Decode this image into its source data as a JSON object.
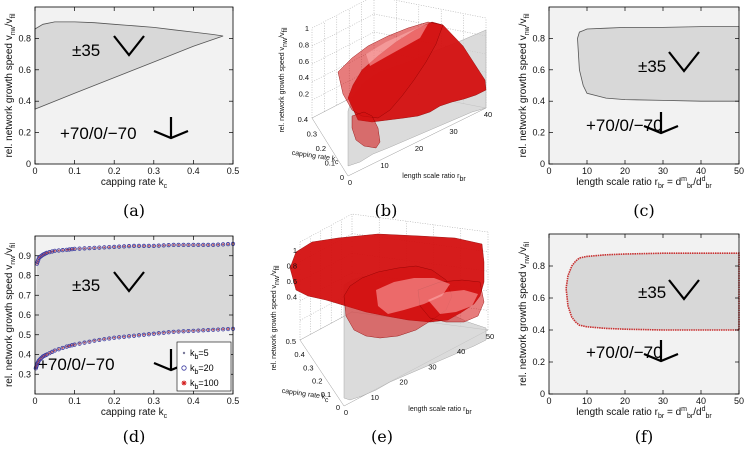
{
  "chart_data": [
    {
      "id": "a",
      "caption": "(a)",
      "type": "area",
      "xlabel": "capping rate k",
      "xlabel_sub": "c",
      "ylabel": "rel. network growth speed v",
      "ylabel_sub": "nw",
      "ylabel_mid": "/v",
      "ylabel_sub2": "fil",
      "xlim": [
        0,
        0.5
      ],
      "ylim": [
        0,
        1
      ],
      "xticks": [
        "0",
        "0.1",
        "0.2",
        "0.3",
        "0.4",
        "0.5"
      ],
      "yticks": [
        "0",
        "0.2",
        "0.4",
        "0.6",
        "0.8"
      ],
      "annotations": [
        {
          "text": "±35",
          "glyph": "v-shape",
          "region": "inside"
        },
        {
          "text": "+70/0/−70",
          "glyph": "three-pronged",
          "region": "outside"
        }
      ],
      "upper_boundary": {
        "x": [
          0,
          0.02,
          0.05,
          0.1,
          0.15,
          0.2,
          0.25,
          0.3,
          0.35,
          0.4,
          0.45,
          0.475
        ],
        "y": [
          0.86,
          0.89,
          0.905,
          0.905,
          0.9,
          0.89,
          0.88,
          0.87,
          0.855,
          0.84,
          0.825,
          0.815
        ]
      },
      "lower_boundary": {
        "x": [
          0,
          0.1,
          0.2,
          0.3,
          0.4,
          0.475
        ],
        "y": [
          0.35,
          0.45,
          0.55,
          0.65,
          0.75,
          0.815
        ]
      }
    },
    {
      "id": "b",
      "caption": "(b)",
      "type": "surface3d",
      "xlabel": "length scale ratio r",
      "xlabel_sub": "br",
      "ylabel": "capping rate k",
      "ylabel_sub": "c",
      "zlabel": "rel. network growth speed v",
      "zlabel_sub": "nw",
      "zlabel_mid": "/v",
      "zlabel_sub2": "fil",
      "xticks": [
        "0",
        "10",
        "20",
        "30",
        "40"
      ],
      "yticks": [
        "0",
        "0.1",
        "0.2",
        "0.3",
        "0.4"
      ],
      "zticks": [
        "0.2",
        "0.4",
        "0.6",
        "0.8",
        "1"
      ],
      "color": "#d41010"
    },
    {
      "id": "c",
      "caption": "(c)",
      "type": "area",
      "xlabel": "length scale ratio r",
      "xlabel_sub": "br",
      "xlabel_tail": " = d",
      "xlabel_sup1": "m",
      "xlabel_sub1": "br",
      "xlabel_tail2": "/d",
      "xlabel_sup2": "d",
      "xlabel_sub2": "br",
      "ylabel": "rel. network growth speed v",
      "ylabel_sub": "nw",
      "ylabel_mid": "/v",
      "ylabel_sub2": "fil",
      "xlim": [
        0,
        50
      ],
      "ylim": [
        0,
        1
      ],
      "xticks": [
        "0",
        "10",
        "20",
        "30",
        "40",
        "50"
      ],
      "yticks": [
        "0",
        "0.2",
        "0.4",
        "0.6",
        "0.8"
      ],
      "annotations": [
        {
          "text": "±35",
          "glyph": "v-shape",
          "region": "inside"
        },
        {
          "text": "+70/0/−70",
          "glyph": "three-pronged",
          "region": "outside"
        }
      ],
      "upper_boundary": {
        "x": [
          7.5,
          8,
          9,
          10,
          15,
          20,
          30,
          40,
          50
        ],
        "y": [
          0.8,
          0.84,
          0.85,
          0.86,
          0.865,
          0.87,
          0.87,
          0.875,
          0.875
        ]
      },
      "lower_boundary": {
        "x": [
          7.5,
          8,
          9,
          10,
          15,
          20,
          30,
          40,
          50
        ],
        "y": [
          0.8,
          0.6,
          0.5,
          0.45,
          0.42,
          0.41,
          0.405,
          0.4,
          0.4
        ]
      }
    },
    {
      "id": "d",
      "caption": "(d)",
      "type": "scatter",
      "xlabel": "capping rate k",
      "xlabel_sub": "c",
      "ylabel": "rel. network growth speed v",
      "ylabel_sub": "nw",
      "ylabel_mid": "/v",
      "ylabel_sub2": "fil",
      "xlim": [
        0,
        0.5
      ],
      "ylim": [
        0.2,
        1
      ],
      "xticks": [
        "0",
        "0.1",
        "0.2",
        "0.3",
        "0.4",
        "0.5"
      ],
      "yticks": [
        "0.3",
        "0.4",
        "0.5",
        "0.6",
        "0.7",
        "0.8",
        "0.9"
      ],
      "annotations": [
        {
          "text": "±35",
          "glyph": "v-shape",
          "region": "inside"
        },
        {
          "text": "+70/0/−70",
          "glyph": "three-pronged",
          "region": "outside"
        }
      ],
      "legend": {
        "placement": "bottom-right"
      },
      "series": [
        {
          "name": "k",
          "name_sub": "b",
          "name_tail": "=5",
          "marker": "dot",
          "color": "#7a7a9a"
        },
        {
          "name": "k",
          "name_sub": "b",
          "name_tail": "=20",
          "marker": "circle",
          "color": "#3a3aa0"
        },
        {
          "name": "k",
          "name_sub": "b",
          "name_tail": "=100",
          "marker": "star",
          "color": "#d42020"
        }
      ],
      "upper_curve": {
        "x": [
          0.005,
          0.01,
          0.02,
          0.03,
          0.05,
          0.08,
          0.1,
          0.15,
          0.2,
          0.25,
          0.3,
          0.35,
          0.4,
          0.45,
          0.5
        ],
        "y": [
          0.86,
          0.89,
          0.905,
          0.915,
          0.925,
          0.93,
          0.935,
          0.94,
          0.945,
          0.95,
          0.95,
          0.955,
          0.955,
          0.955,
          0.96
        ]
      },
      "lower_curve": {
        "x": [
          0.002,
          0.005,
          0.01,
          0.02,
          0.03,
          0.05,
          0.08,
          0.1,
          0.15,
          0.2,
          0.25,
          0.3,
          0.35,
          0.4,
          0.45,
          0.5
        ],
        "y": [
          0.33,
          0.35,
          0.37,
          0.39,
          0.4,
          0.42,
          0.44,
          0.45,
          0.47,
          0.485,
          0.495,
          0.505,
          0.515,
          0.52,
          0.525,
          0.53
        ]
      }
    },
    {
      "id": "e",
      "caption": "(e)",
      "type": "surface3d",
      "xlabel": "length scale ratio r",
      "xlabel_sub": "br",
      "ylabel": "capping rate k",
      "ylabel_sub": "c",
      "zlabel": "rel. network growth speed v",
      "zlabel_sub": "nw",
      "zlabel_mid": "/v",
      "zlabel_sub2": "fil",
      "xticks": [
        "0",
        "10",
        "20",
        "30",
        "40",
        "50"
      ],
      "yticks": [
        "0",
        "0.1",
        "0.2",
        "0.3",
        "0.4",
        "0.5"
      ],
      "zticks": [
        "0.4",
        "0.6",
        "0.8",
        "1"
      ],
      "color": "#d41010"
    },
    {
      "id": "f",
      "caption": "(f)",
      "type": "area",
      "xlabel": "length scale ratio r",
      "xlabel_sub": "br",
      "xlabel_tail": " = d",
      "xlabel_sup1": "m",
      "xlabel_sub1": "br",
      "xlabel_tail2": "/d",
      "xlabel_sup2": "d",
      "xlabel_sub2": "br",
      "ylabel": "rel. network growth speed v",
      "ylabel_sub": "nw",
      "ylabel_mid": "/v",
      "ylabel_sub2": "fil",
      "xlim": [
        0,
        50
      ],
      "ylim": [
        0,
        1
      ],
      "xticks": [
        "0",
        "10",
        "20",
        "30",
        "40",
        "50"
      ],
      "yticks": [
        "0",
        "0.2",
        "0.4",
        "0.6",
        "0.8"
      ],
      "annotations": [
        {
          "text": "±35",
          "glyph": "v-shape",
          "region": "inside"
        },
        {
          "text": "+70/0/−70",
          "glyph": "three-pronged",
          "region": "outside"
        }
      ],
      "boundary_color": "#c83030",
      "upper_boundary": {
        "x": [
          4.5,
          5,
          6,
          7,
          8,
          10,
          15,
          20,
          30,
          40,
          50
        ],
        "y": [
          0.66,
          0.74,
          0.8,
          0.83,
          0.85,
          0.86,
          0.87,
          0.875,
          0.88,
          0.88,
          0.88
        ]
      },
      "lower_boundary": {
        "x": [
          4.5,
          5,
          6,
          7,
          8,
          10,
          15,
          20,
          30,
          40,
          50
        ],
        "y": [
          0.66,
          0.55,
          0.48,
          0.45,
          0.43,
          0.42,
          0.41,
          0.405,
          0.4,
          0.4,
          0.4
        ]
      }
    }
  ]
}
